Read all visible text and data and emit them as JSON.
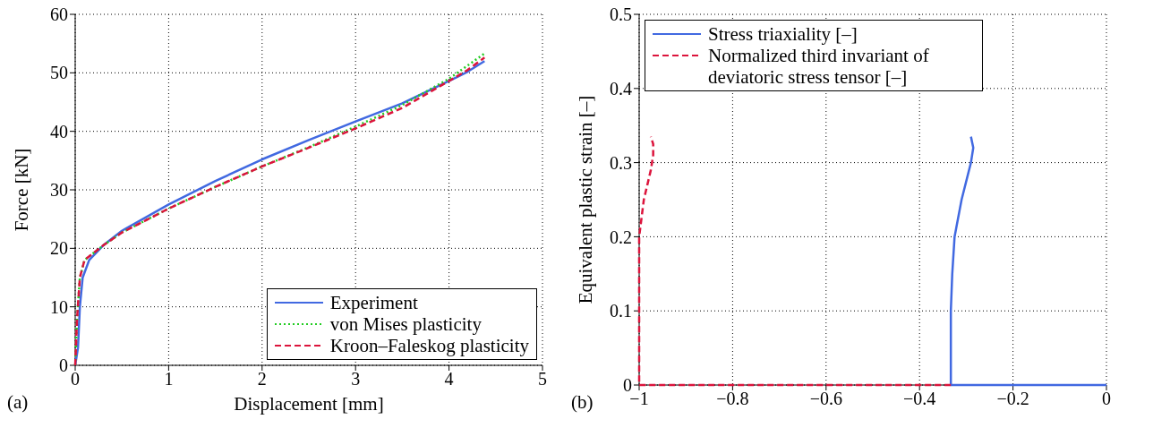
{
  "chart_data": [
    {
      "type": "line",
      "xlabel": "Displacement [mm]",
      "ylabel": "Force [kN]",
      "xlim": [
        0,
        5
      ],
      "ylim": [
        0,
        60
      ],
      "xticks": [
        0,
        1,
        2,
        3,
        4,
        5
      ],
      "yticks": [
        0,
        10,
        20,
        30,
        40,
        50,
        60
      ],
      "grid": true,
      "legend": "bottom right",
      "annotations": [
        "(a)"
      ],
      "series": [
        {
          "name": "Experiment",
          "color": "#4169e1",
          "line_style": "solid",
          "x": [
            0,
            0.03,
            0.05,
            0.08,
            0.15,
            0.3,
            0.5,
            1,
            1.5,
            2,
            2.5,
            3,
            3.5,
            4,
            4.2,
            4.38
          ],
          "values": [
            0,
            3,
            10,
            15,
            18,
            20.5,
            23,
            27.5,
            31.5,
            35.2,
            38.5,
            41.7,
            44.8,
            48.6,
            50.2,
            52
          ]
        },
        {
          "name": "von Mises plasticity",
          "color": "#22cc22",
          "line_style": "dotted",
          "x": [
            0,
            0.02,
            0.05,
            0.1,
            0.3,
            0.5,
            1,
            1.5,
            2,
            2.5,
            3,
            3.5,
            4,
            4.38
          ],
          "values": [
            0,
            8,
            15,
            18,
            20.5,
            22.7,
            26.8,
            30.5,
            34,
            37.3,
            40.8,
            44.5,
            49,
            53.3
          ]
        },
        {
          "name": "Kroon–Faleskog plasticity",
          "color": "#dc143c",
          "line_style": "dashed",
          "x": [
            0,
            0.02,
            0.05,
            0.1,
            0.3,
            0.5,
            1,
            1.5,
            2,
            2.5,
            3,
            3.5,
            4,
            4.2,
            4.38
          ],
          "values": [
            0,
            8,
            15,
            18,
            20.5,
            22.7,
            26.8,
            30.5,
            34,
            37.2,
            40.5,
            44,
            48.6,
            50.5,
            52.6
          ]
        }
      ]
    },
    {
      "type": "line",
      "ylabel": "Equivalent plastic strain [–]",
      "xlim": [
        -1,
        0
      ],
      "ylim": [
        0,
        0.5
      ],
      "xticks": [
        -1,
        -0.8,
        -0.6,
        -0.4,
        -0.2,
        0
      ],
      "yticks": [
        0,
        0.1,
        0.2,
        0.3,
        0.4,
        0.5
      ],
      "grid": true,
      "legend": "top left",
      "annotations": [
        "(b)"
      ],
      "series": [
        {
          "name": "Stress triaxiality [–]",
          "color": "#4169e1",
          "line_style": "solid",
          "x": [
            0,
            -0.333,
            -0.333,
            -0.33,
            -0.325,
            -0.31,
            -0.29,
            -0.285,
            -0.29
          ],
          "values": [
            0,
            0,
            0.1,
            0.15,
            0.2,
            0.25,
            0.3,
            0.32,
            0.335
          ]
        },
        {
          "name": "Normalized third invariant of deviatoric stress tensor [–]",
          "color": "#dc143c",
          "line_style": "dashed",
          "x": [
            -0.333,
            -1,
            -1,
            -0.99,
            -0.975,
            -0.97,
            -0.97,
            -0.975
          ],
          "values": [
            0,
            0,
            0.2,
            0.25,
            0.29,
            0.31,
            0.325,
            0.335
          ]
        }
      ]
    }
  ]
}
